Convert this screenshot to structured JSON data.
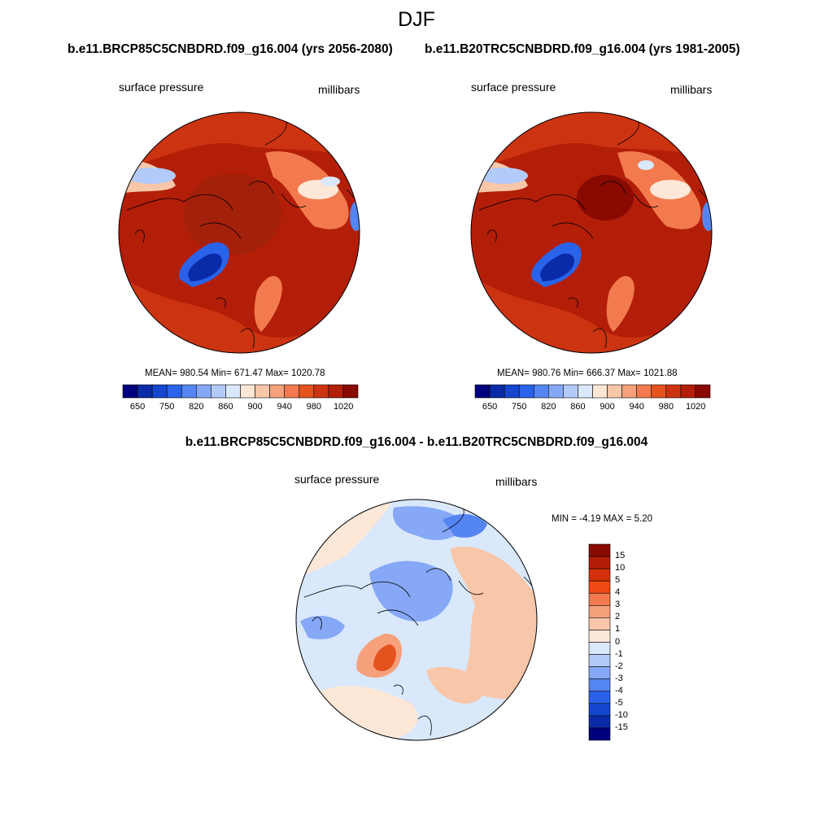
{
  "figure_title": "DJF",
  "panels": {
    "future": {
      "run_title": "b.e11.BRCP85C5CNBDRD.f09_g16.004 (yrs 2056-2080)",
      "variable": "surface pressure",
      "units": "millibars",
      "stats": "MEAN= 980.54  Min= 671.47  Max= 1020.78"
    },
    "historical": {
      "run_title": "b.e11.B20TRC5CNBDRD.f09_g16.004 (yrs 1981-2005)",
      "variable": "surface pressure",
      "units": "millibars",
      "stats": "MEAN= 980.76  Min= 666.37  Max= 1021.88"
    },
    "difference": {
      "title": "b.e11.BRCP85C5CNBDRD.f09_g16.004 - b.e11.B20TRC5CNBDRD.f09_g16.004",
      "variable": "surface pressure",
      "units": "millibars",
      "stats": "MIN =  -4.19 MAX =   5.20"
    }
  },
  "colorbar_abs": {
    "colors": [
      "#00007f",
      "#0a2ba8",
      "#1546cf",
      "#2a63ea",
      "#5585f2",
      "#86a8f7",
      "#b3cbfa",
      "#dae8fc",
      "#fde7d6",
      "#f8c6a8",
      "#f6a07c",
      "#f27a4e",
      "#e4531e",
      "#cc3311",
      "#b31e08",
      "#8a0a02"
    ],
    "ticks": [
      "650",
      "750",
      "820",
      "860",
      "900",
      "940",
      "980",
      "1020"
    ]
  },
  "colorbar_diff": {
    "colors": [
      "#8a0a02",
      "#b31e08",
      "#d4300a",
      "#f04a14",
      "#f27a4e",
      "#f6a07c",
      "#f8c6a8",
      "#fde7d6",
      "#dae8fc",
      "#b3cbfa",
      "#86a8f7",
      "#5585f2",
      "#2a63ea",
      "#1546cf",
      "#0a2ba8",
      "#00007f"
    ],
    "ticks": [
      "15",
      "10",
      "5",
      "4",
      "3",
      "2",
      "1",
      "0",
      "-1",
      "-2",
      "-3",
      "-4",
      "-5",
      "-10",
      "-15"
    ]
  }
}
